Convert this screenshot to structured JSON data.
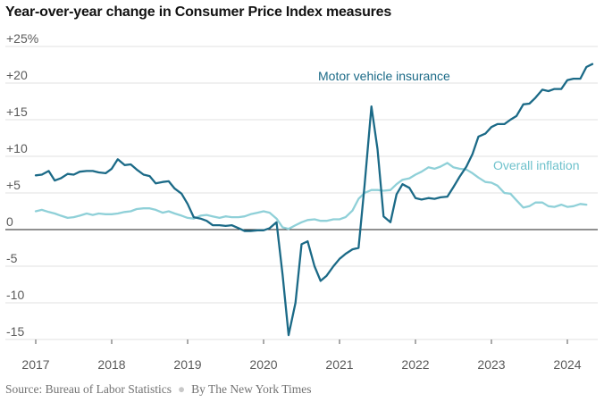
{
  "chart_data": {
    "type": "line",
    "title": "Year-over-year change in Consumer Price Index measures",
    "source": "Source: Bureau of Labor Statistics",
    "credit": "By The New York Times",
    "x_axis": {
      "ticks": [
        2017,
        2018,
        2019,
        2020,
        2021,
        2022,
        2023,
        2024
      ],
      "range": [
        2017,
        2024.4
      ]
    },
    "y_axis": {
      "ticks": [
        25,
        20,
        15,
        10,
        5,
        0,
        -5,
        -10,
        -15
      ],
      "tick_labels": [
        "+25%",
        "+20",
        "+15",
        "+10",
        "+5",
        "0",
        "-5",
        "-10",
        "-15"
      ],
      "range": [
        -15,
        25
      ]
    },
    "grid": true,
    "series": [
      {
        "name": "Motor vehicle insurance",
        "color": "#1b6a87",
        "points": [
          [
            2017.0,
            7.4
          ],
          [
            2017.08,
            7.5
          ],
          [
            2017.17,
            8.0
          ],
          [
            2017.25,
            6.7
          ],
          [
            2017.33,
            7.0
          ],
          [
            2017.42,
            7.6
          ],
          [
            2017.5,
            7.5
          ],
          [
            2017.58,
            7.9
          ],
          [
            2017.67,
            8.0
          ],
          [
            2017.75,
            8.0
          ],
          [
            2017.83,
            7.8
          ],
          [
            2017.92,
            7.7
          ],
          [
            2018.0,
            8.3
          ],
          [
            2018.08,
            9.6
          ],
          [
            2018.17,
            8.8
          ],
          [
            2018.25,
            8.9
          ],
          [
            2018.33,
            8.2
          ],
          [
            2018.42,
            7.5
          ],
          [
            2018.5,
            7.3
          ],
          [
            2018.58,
            6.3
          ],
          [
            2018.67,
            6.5
          ],
          [
            2018.75,
            6.6
          ],
          [
            2018.83,
            5.6
          ],
          [
            2018.92,
            4.9
          ],
          [
            2019.0,
            3.5
          ],
          [
            2019.08,
            1.7
          ],
          [
            2019.17,
            1.5
          ],
          [
            2019.25,
            1.2
          ],
          [
            2019.33,
            0.6
          ],
          [
            2019.42,
            0.6
          ],
          [
            2019.5,
            0.5
          ],
          [
            2019.58,
            0.6
          ],
          [
            2019.67,
            0.2
          ],
          [
            2019.75,
            -0.2
          ],
          [
            2019.83,
            -0.2
          ],
          [
            2019.92,
            -0.1
          ],
          [
            2020.0,
            -0.1
          ],
          [
            2020.08,
            0.2
          ],
          [
            2020.17,
            1.0
          ],
          [
            2020.25,
            -6.2
          ],
          [
            2020.33,
            -14.4
          ],
          [
            2020.42,
            -10.0
          ],
          [
            2020.5,
            -2.0
          ],
          [
            2020.58,
            -1.6
          ],
          [
            2020.67,
            -5.0
          ],
          [
            2020.75,
            -7.0
          ],
          [
            2020.83,
            -6.3
          ],
          [
            2020.92,
            -5.0
          ],
          [
            2021.0,
            -4.0
          ],
          [
            2021.08,
            -3.3
          ],
          [
            2021.17,
            -2.7
          ],
          [
            2021.25,
            -2.5
          ],
          [
            2021.33,
            6.0
          ],
          [
            2021.42,
            16.8
          ],
          [
            2021.5,
            11.0
          ],
          [
            2021.58,
            1.8
          ],
          [
            2021.67,
            1.0
          ],
          [
            2021.75,
            4.8
          ],
          [
            2021.83,
            6.2
          ],
          [
            2021.92,
            5.7
          ],
          [
            2022.0,
            4.3
          ],
          [
            2022.08,
            4.1
          ],
          [
            2022.17,
            4.3
          ],
          [
            2022.25,
            4.2
          ],
          [
            2022.33,
            4.4
          ],
          [
            2022.42,
            4.5
          ],
          [
            2022.5,
            5.8
          ],
          [
            2022.58,
            7.2
          ],
          [
            2022.67,
            8.6
          ],
          [
            2022.75,
            10.3
          ],
          [
            2022.83,
            12.7
          ],
          [
            2022.92,
            13.1
          ],
          [
            2023.0,
            14.0
          ],
          [
            2023.08,
            14.4
          ],
          [
            2023.17,
            14.4
          ],
          [
            2023.25,
            15.0
          ],
          [
            2023.33,
            15.5
          ],
          [
            2023.42,
            17.1
          ],
          [
            2023.5,
            17.2
          ],
          [
            2023.58,
            18.0
          ],
          [
            2023.67,
            19.1
          ],
          [
            2023.75,
            18.9
          ],
          [
            2023.83,
            19.2
          ],
          [
            2023.92,
            19.2
          ],
          [
            2024.0,
            20.4
          ],
          [
            2024.08,
            20.6
          ],
          [
            2024.17,
            20.6
          ],
          [
            2024.25,
            22.2
          ],
          [
            2024.33,
            22.6
          ]
        ]
      },
      {
        "name": "Overall inflation",
        "color": "#8fd0d8",
        "points": [
          [
            2017.0,
            2.5
          ],
          [
            2017.08,
            2.7
          ],
          [
            2017.17,
            2.4
          ],
          [
            2017.25,
            2.2
          ],
          [
            2017.33,
            1.9
          ],
          [
            2017.42,
            1.6
          ],
          [
            2017.5,
            1.7
          ],
          [
            2017.58,
            1.9
          ],
          [
            2017.67,
            2.2
          ],
          [
            2017.75,
            2.0
          ],
          [
            2017.83,
            2.2
          ],
          [
            2017.92,
            2.1
          ],
          [
            2018.0,
            2.1
          ],
          [
            2018.08,
            2.2
          ],
          [
            2018.17,
            2.4
          ],
          [
            2018.25,
            2.5
          ],
          [
            2018.33,
            2.8
          ],
          [
            2018.42,
            2.9
          ],
          [
            2018.5,
            2.9
          ],
          [
            2018.58,
            2.7
          ],
          [
            2018.67,
            2.3
          ],
          [
            2018.75,
            2.5
          ],
          [
            2018.83,
            2.2
          ],
          [
            2018.92,
            1.9
          ],
          [
            2019.0,
            1.6
          ],
          [
            2019.08,
            1.5
          ],
          [
            2019.17,
            1.9
          ],
          [
            2019.25,
            2.0
          ],
          [
            2019.33,
            1.8
          ],
          [
            2019.42,
            1.6
          ],
          [
            2019.5,
            1.8
          ],
          [
            2019.58,
            1.7
          ],
          [
            2019.67,
            1.7
          ],
          [
            2019.75,
            1.8
          ],
          [
            2019.83,
            2.1
          ],
          [
            2019.92,
            2.3
          ],
          [
            2020.0,
            2.5
          ],
          [
            2020.08,
            2.3
          ],
          [
            2020.17,
            1.5
          ],
          [
            2020.25,
            0.3
          ],
          [
            2020.33,
            0.1
          ],
          [
            2020.42,
            0.6
          ],
          [
            2020.5,
            1.0
          ],
          [
            2020.58,
            1.3
          ],
          [
            2020.67,
            1.4
          ],
          [
            2020.75,
            1.2
          ],
          [
            2020.83,
            1.2
          ],
          [
            2020.92,
            1.4
          ],
          [
            2021.0,
            1.4
          ],
          [
            2021.08,
            1.7
          ],
          [
            2021.17,
            2.6
          ],
          [
            2021.25,
            4.2
          ],
          [
            2021.33,
            5.0
          ],
          [
            2021.42,
            5.4
          ],
          [
            2021.5,
            5.4
          ],
          [
            2021.58,
            5.3
          ],
          [
            2021.67,
            5.4
          ],
          [
            2021.75,
            6.2
          ],
          [
            2021.83,
            6.8
          ],
          [
            2021.92,
            7.0
          ],
          [
            2022.0,
            7.5
          ],
          [
            2022.08,
            7.9
          ],
          [
            2022.17,
            8.5
          ],
          [
            2022.25,
            8.3
          ],
          [
            2022.33,
            8.6
          ],
          [
            2022.42,
            9.1
          ],
          [
            2022.5,
            8.5
          ],
          [
            2022.58,
            8.3
          ],
          [
            2022.67,
            8.2
          ],
          [
            2022.75,
            7.7
          ],
          [
            2022.83,
            7.1
          ],
          [
            2022.92,
            6.5
          ],
          [
            2023.0,
            6.4
          ],
          [
            2023.08,
            6.0
          ],
          [
            2023.17,
            5.0
          ],
          [
            2023.25,
            4.9
          ],
          [
            2023.33,
            4.0
          ],
          [
            2023.42,
            3.0
          ],
          [
            2023.5,
            3.2
          ],
          [
            2023.58,
            3.7
          ],
          [
            2023.67,
            3.7
          ],
          [
            2023.75,
            3.2
          ],
          [
            2023.83,
            3.1
          ],
          [
            2023.92,
            3.4
          ],
          [
            2024.0,
            3.1
          ],
          [
            2024.08,
            3.2
          ],
          [
            2024.17,
            3.5
          ],
          [
            2024.25,
            3.4
          ]
        ]
      }
    ]
  }
}
